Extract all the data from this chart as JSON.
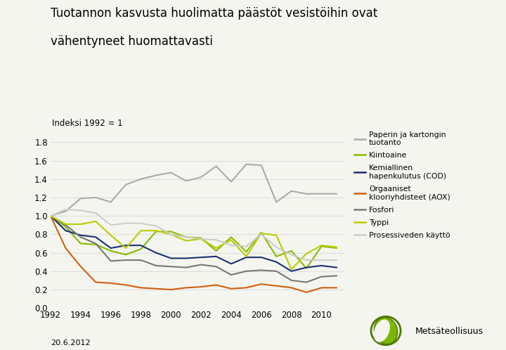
{
  "title_line1": "Tuotannon kasvusta huolimatta päästöt vesistöihin ovat",
  "title_line2": "vähentyneet huomattavasti",
  "subtitle": "Indeksi 1992 = 1",
  "date_label": "20.6.2012",
  "years": [
    1992,
    1993,
    1994,
    1995,
    1996,
    1997,
    1998,
    1999,
    2000,
    2001,
    2002,
    2003,
    2004,
    2005,
    2006,
    2007,
    2008,
    2009,
    2010,
    2011
  ],
  "series": {
    "Paperin ja kartongin\ntuotanto": {
      "color": "#aaaaaa",
      "values": [
        1.0,
        1.05,
        1.19,
        1.2,
        1.15,
        1.34,
        1.4,
        1.44,
        1.47,
        1.38,
        1.42,
        1.54,
        1.37,
        1.56,
        1.55,
        1.15,
        1.27,
        1.24,
        1.24,
        1.24
      ]
    },
    "Kiintoaine": {
      "color": "#88bb00",
      "values": [
        1.0,
        0.88,
        0.7,
        0.69,
        0.62,
        0.58,
        0.64,
        0.83,
        0.83,
        0.77,
        0.76,
        0.62,
        0.77,
        0.61,
        0.82,
        0.56,
        0.62,
        0.43,
        0.67,
        0.65
      ]
    },
    "Kemiallinen\nhapenkulutus (COD)": {
      "color": "#1a3070",
      "values": [
        1.0,
        0.84,
        0.79,
        0.77,
        0.65,
        0.68,
        0.68,
        0.6,
        0.54,
        0.54,
        0.55,
        0.56,
        0.48,
        0.55,
        0.55,
        0.5,
        0.4,
        0.44,
        0.46,
        0.44
      ]
    },
    "Orgaaniset\nklooriyhdisteet (AOX)": {
      "color": "#d06010",
      "values": [
        1.0,
        0.65,
        0.45,
        0.28,
        0.27,
        0.25,
        0.22,
        0.21,
        0.2,
        0.22,
        0.23,
        0.25,
        0.21,
        0.22,
        0.26,
        0.24,
        0.22,
        0.17,
        0.22,
        0.22
      ]
    },
    "Fosfori": {
      "color": "#777777",
      "values": [
        1.0,
        0.9,
        0.77,
        0.7,
        0.51,
        0.52,
        0.52,
        0.46,
        0.45,
        0.44,
        0.47,
        0.45,
        0.36,
        0.4,
        0.41,
        0.4,
        0.3,
        0.28,
        0.34,
        0.35
      ]
    },
    "Typpi": {
      "color": "#bbcc00",
      "values": [
        1.0,
        0.91,
        0.91,
        0.94,
        0.79,
        0.65,
        0.84,
        0.84,
        0.8,
        0.73,
        0.75,
        0.65,
        0.74,
        0.56,
        0.81,
        0.79,
        0.42,
        0.59,
        0.68,
        0.66
      ]
    },
    "Prosessiveden käyttö": {
      "color": "#cccccc",
      "values": [
        1.0,
        1.07,
        1.06,
        1.03,
        0.9,
        0.92,
        0.92,
        0.89,
        0.8,
        0.77,
        0.75,
        0.74,
        0.68,
        0.67,
        0.8,
        0.66,
        0.58,
        0.52,
        0.52,
        0.52
      ]
    }
  },
  "ylim": [
    0,
    1.9
  ],
  "yticks": [
    0,
    0.2,
    0.4,
    0.6,
    0.8,
    1.0,
    1.2,
    1.4,
    1.6,
    1.8
  ],
  "bg_color": "#f5f5f0",
  "plot_bg": "#f5f5f0",
  "grid_color": "#dddddd"
}
